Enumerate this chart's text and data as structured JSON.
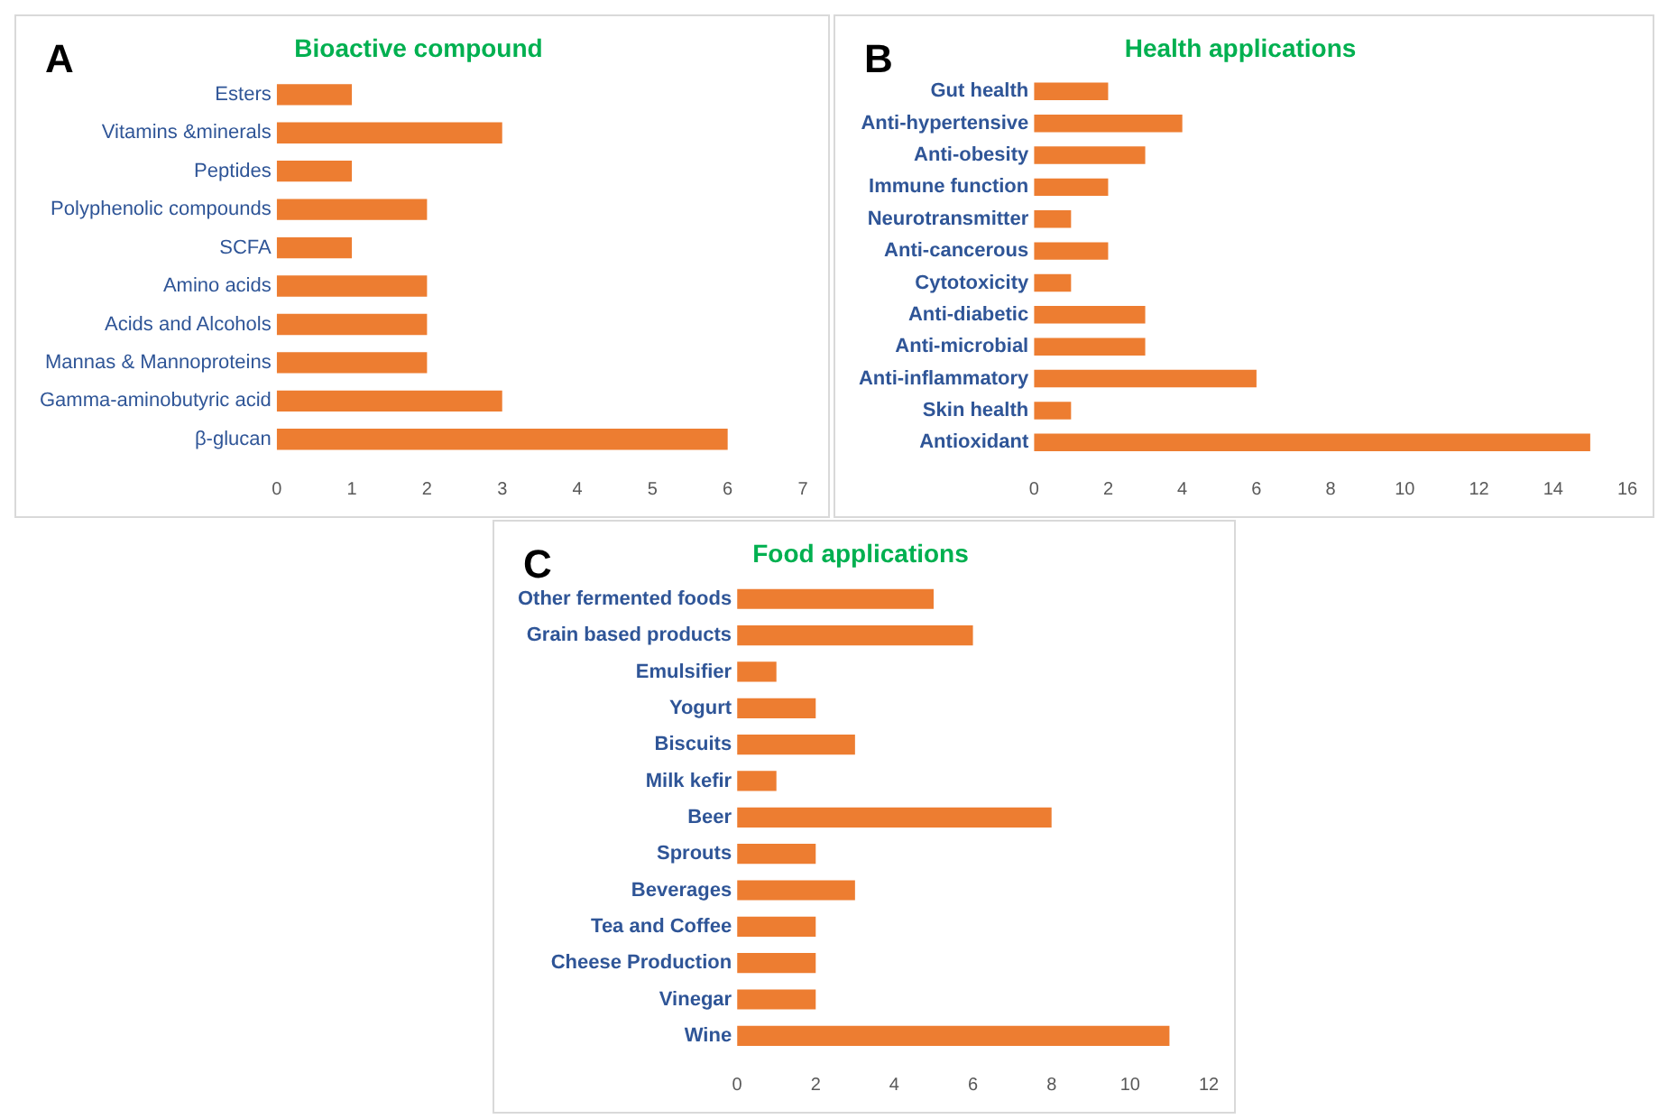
{
  "chart_data": [
    {
      "type": "bar",
      "orientation": "horizontal",
      "title": "Bioactive compound",
      "annotations": [
        "A"
      ],
      "categories": [
        "Esters",
        "Vitamins &minerals",
        "Peptides",
        "Polyphenolic compounds",
        "SCFA",
        "Amino acids",
        "Acids and Alcohols",
        "Mannas & Mannoproteins",
        "Gamma-aminobutyric acid",
        "β-glucan"
      ],
      "values": [
        1,
        3,
        1,
        2,
        1,
        2,
        2,
        2,
        3,
        6
      ],
      "color": "#ed7d31",
      "xlim": [
        0,
        7
      ],
      "xticks": [
        0,
        1,
        2,
        3,
        4,
        5,
        6,
        7
      ],
      "grid": false,
      "legend": false
    },
    {
      "type": "bar",
      "orientation": "horizontal",
      "title": "Health applications",
      "annotations": [
        "B"
      ],
      "categories": [
        "Gut health",
        "Anti-hypertensive",
        "Anti-obesity",
        "Immune function",
        "Neurotransmitter",
        "Anti-cancerous",
        "Cytotoxicity",
        "Anti-diabetic",
        "Anti-microbial",
        "Anti-inflammatory",
        "Skin health",
        "Antioxidant"
      ],
      "values": [
        2,
        4,
        3,
        2,
        1,
        2,
        1,
        3,
        3,
        6,
        1,
        15
      ],
      "color": "#ed7d31",
      "xlim": [
        0,
        16
      ],
      "xticks": [
        0,
        2,
        4,
        6,
        8,
        10,
        12,
        14,
        16
      ],
      "grid": false,
      "legend": false
    },
    {
      "type": "bar",
      "orientation": "horizontal",
      "title": "Food applications",
      "annotations": [
        "C"
      ],
      "categories": [
        "Other fermented foods",
        "Grain based products",
        "Emulsifier",
        "Yogurt",
        "Biscuits",
        "Milk kefir",
        "Beer",
        "Sprouts",
        "Beverages",
        "Tea and Coffee",
        "Cheese Production",
        "Vinegar",
        "Wine"
      ],
      "values": [
        5,
        6,
        1,
        2,
        3,
        1,
        8,
        2,
        3,
        2,
        2,
        2,
        11
      ],
      "color": "#ed7d31",
      "xlim": [
        0,
        12
      ],
      "xticks": [
        0,
        2,
        4,
        6,
        8,
        10,
        12
      ],
      "grid": false,
      "legend": false
    }
  ]
}
